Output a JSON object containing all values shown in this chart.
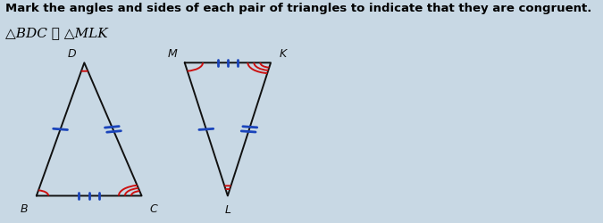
{
  "title": "Mark the angles and sides of each pair of triangles to indicate that they are congruent.",
  "subtitle": "△BDC ≅ △MLK",
  "bg_color": "#c8d8e4",
  "tri1": {
    "B": [
      0.075,
      0.12
    ],
    "D": [
      0.175,
      0.72
    ],
    "C": [
      0.295,
      0.12
    ],
    "label_B": "B",
    "label_D": "D",
    "label_C": "C"
  },
  "tri2": {
    "M": [
      0.385,
      0.72
    ],
    "L": [
      0.475,
      0.12
    ],
    "K": [
      0.565,
      0.72
    ],
    "label_M": "M",
    "label_L": "L",
    "label_K": "K"
  },
  "line_color": "#111111",
  "blue": "#1a44bb",
  "red": "#cc1111"
}
